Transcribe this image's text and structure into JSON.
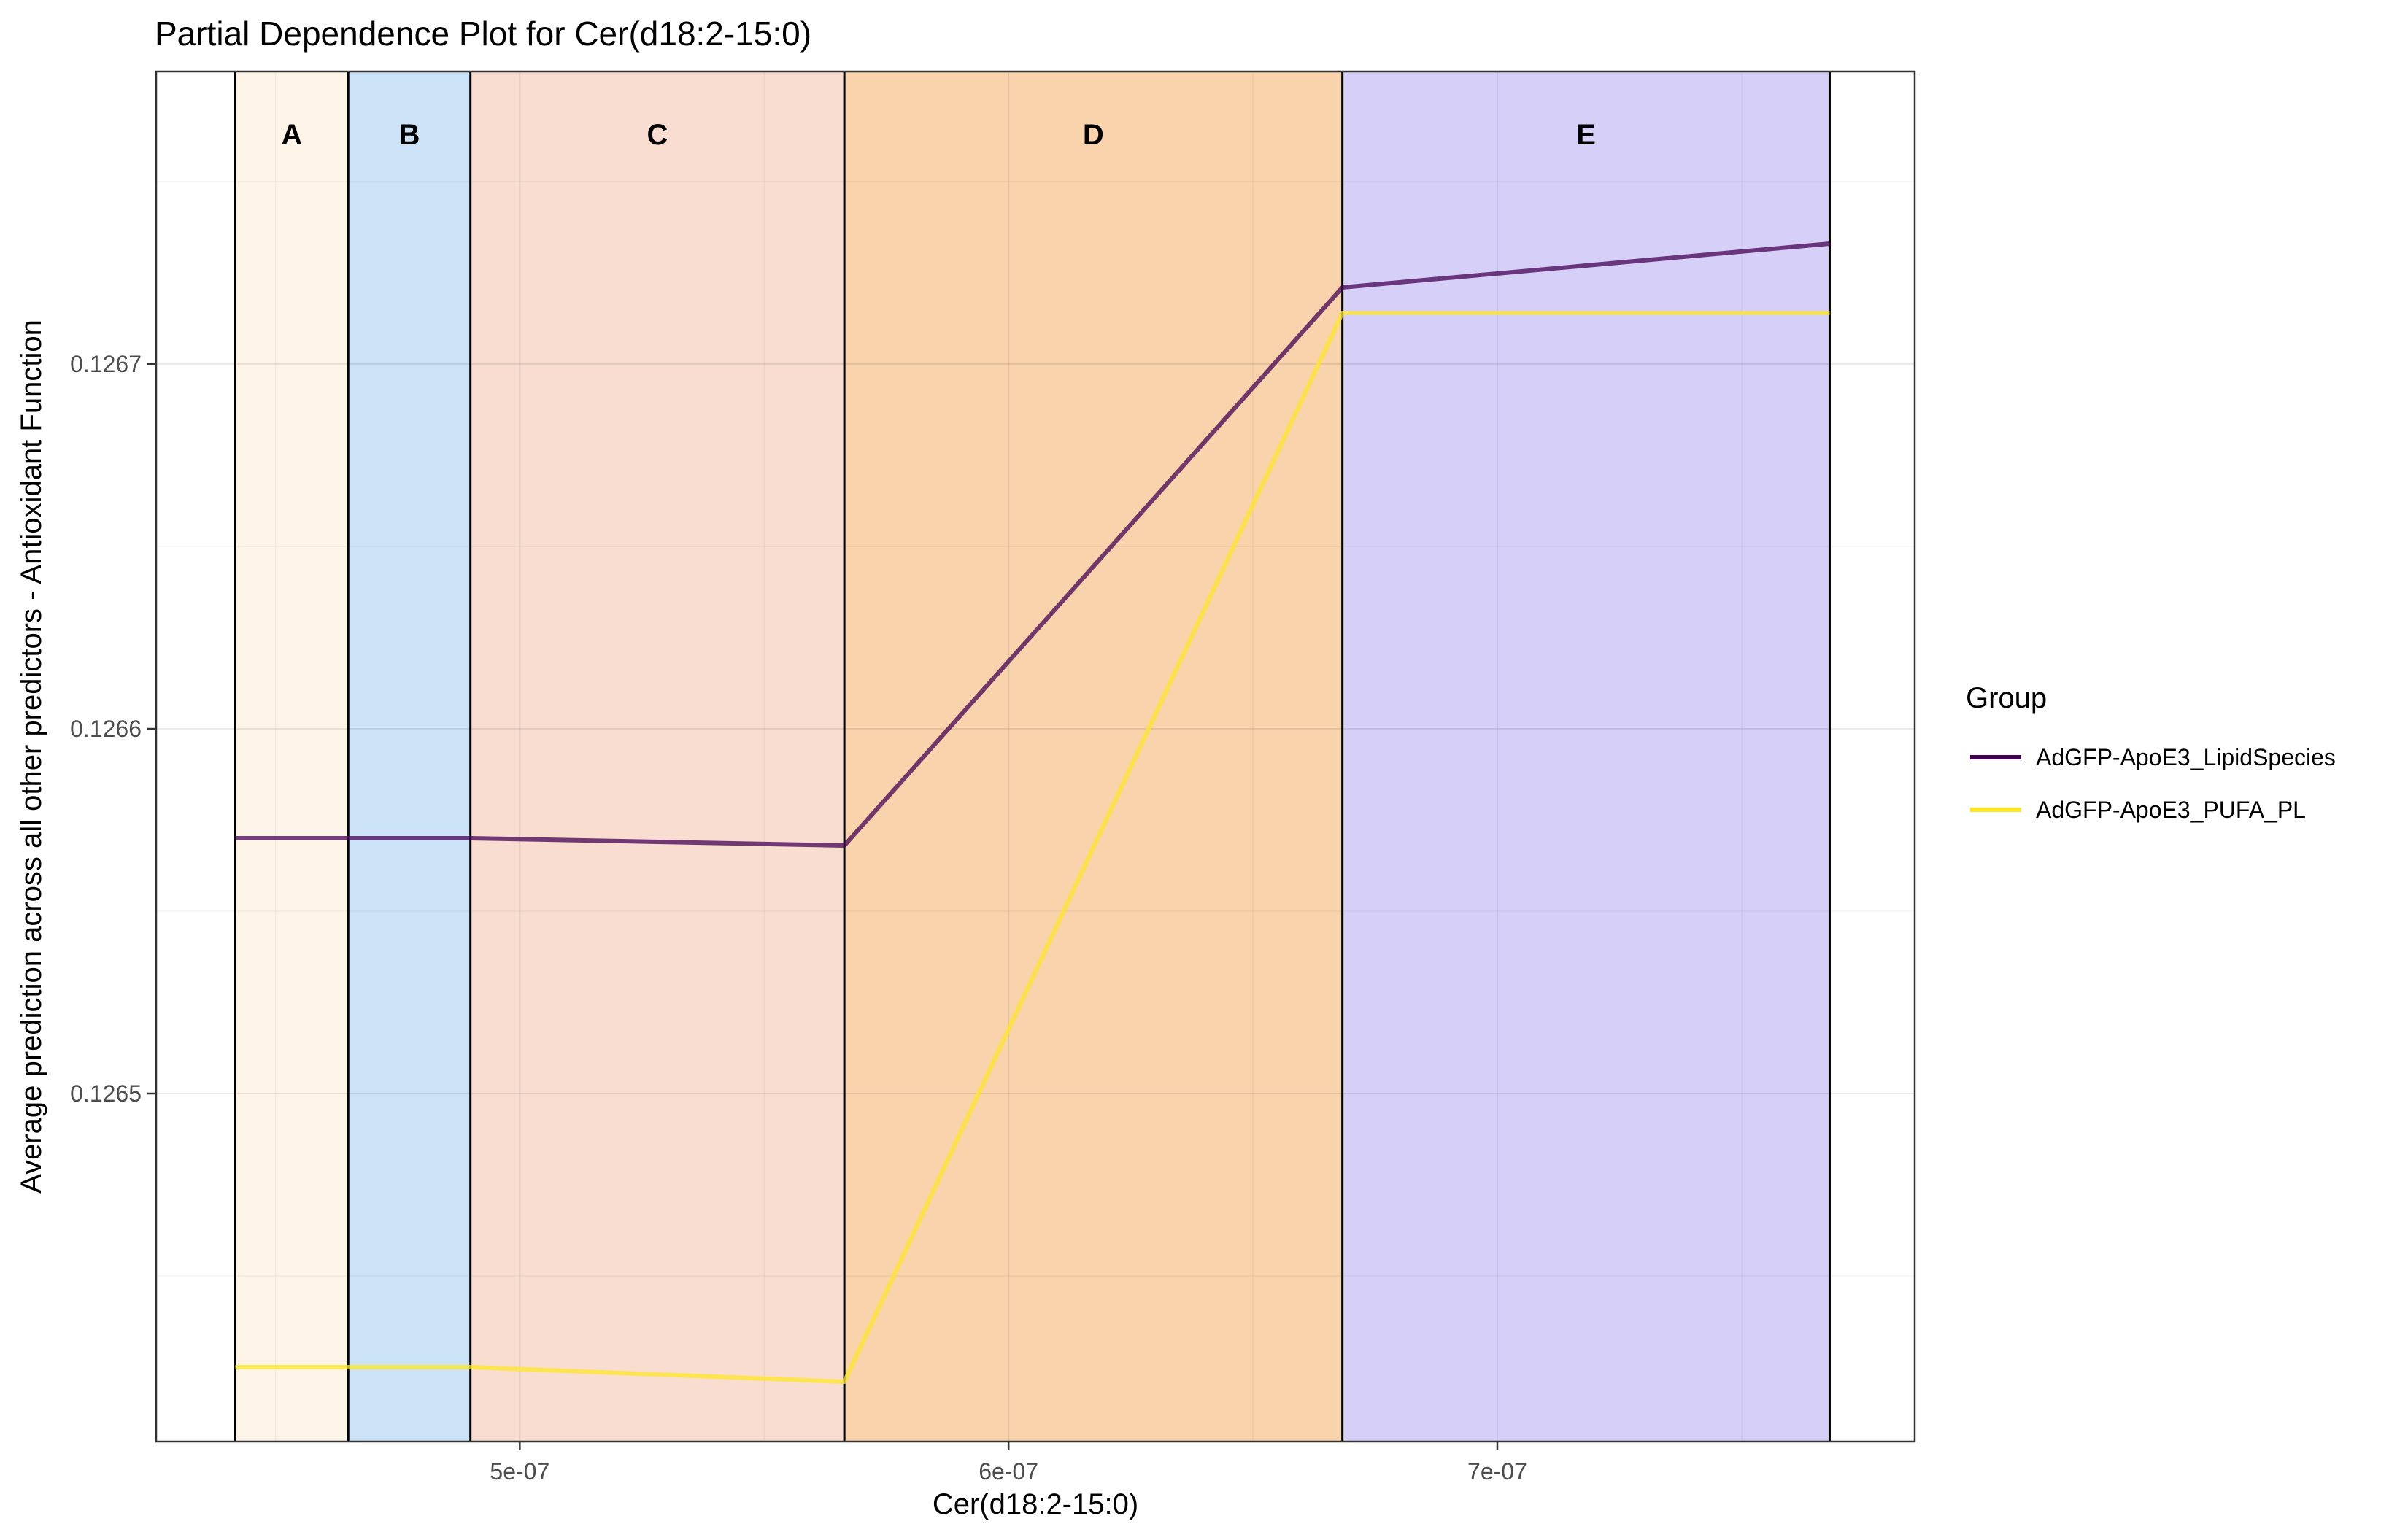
{
  "chart_data": {
    "type": "line",
    "title": "Partial Dependence Plot for Cer(d18:2-15:0)",
    "xlabel": "Cer(d18:2-15:0)",
    "ylabel": "Average prediction across all other predictors - Antioxidant Function",
    "xlim": [
      4.256e-07,
      7.854e-07
    ],
    "ylim": [
      0.1264046,
      0.1267802
    ],
    "x_ticks": [
      {
        "value": 5e-07,
        "label": "5e-07"
      },
      {
        "value": 6e-07,
        "label": "6e-07"
      },
      {
        "value": 7e-07,
        "label": "7e-07"
      }
    ],
    "y_ticks": [
      {
        "value": 0.1265,
        "label": "0.1265"
      },
      {
        "value": 0.1266,
        "label": "0.1266"
      },
      {
        "value": 0.1267,
        "label": "0.1267"
      }
    ],
    "grid": true,
    "regions": [
      {
        "label": "A",
        "x0": 4.418e-07,
        "x1": 4.649e-07,
        "color": "#fef4e8"
      },
      {
        "label": "B",
        "x0": 4.649e-07,
        "x1": 4.899e-07,
        "color": "#cce2f7"
      },
      {
        "label": "C",
        "x0": 4.899e-07,
        "x1": 5.664e-07,
        "color": "#f8ddd0"
      },
      {
        "label": "D",
        "x0": 5.664e-07,
        "x1": 6.683e-07,
        "color": "#f8d3ab"
      },
      {
        "label": "E",
        "x0": 6.683e-07,
        "x1": 7.68e-07,
        "color": "#d6cff8"
      }
    ],
    "series": [
      {
        "name": "AdGFP-ApoE3_LipidSpecies",
        "color": "#440154",
        "x": [
          4.418e-07,
          4.649e-07,
          4.899e-07,
          5.664e-07,
          6.683e-07,
          7.68e-07
        ],
        "y": [
          0.12657,
          0.12657,
          0.12657,
          0.126568,
          0.126721,
          0.126733
        ]
      },
      {
        "name": "AdGFP-ApoE3_PUFA_PL",
        "color": "#fde725",
        "x": [
          4.418e-07,
          4.649e-07,
          4.899e-07,
          5.664e-07,
          6.683e-07,
          7.68e-07
        ],
        "y": [
          0.126425,
          0.126425,
          0.126425,
          0.126421,
          0.126714,
          0.126714
        ]
      }
    ],
    "legend": {
      "title": "Group",
      "position": "right"
    }
  }
}
